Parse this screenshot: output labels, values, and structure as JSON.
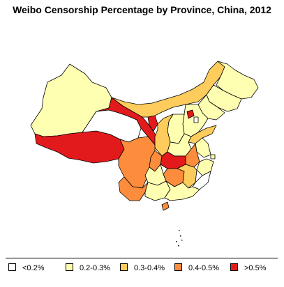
{
  "title": "Weibo Censorship Percentage by Province, China, 2012",
  "legend": {
    "items": [
      {
        "label": "<0.2%",
        "color": "#ffffff"
      },
      {
        "label": "0.2-0.3%",
        "color": "#ffffb2"
      },
      {
        "label": "0.3-0.4%",
        "color": "#fecc5c"
      },
      {
        "label": "0.4-0.5%",
        "color": "#fd8d3c"
      },
      {
        "label": ">0.5%",
        "color": "#e31a1c"
      }
    ]
  },
  "provinces": [
    {
      "name": "Xinjiang",
      "class": 1
    },
    {
      "name": "Tibet",
      "class": 4
    },
    {
      "name": "Qinghai",
      "class": 0
    },
    {
      "name": "Gansu",
      "class": 4
    },
    {
      "name": "Ningxia",
      "class": 4
    },
    {
      "name": "Inner Mongolia",
      "class": 2
    },
    {
      "name": "Heilongjiang",
      "class": 1
    },
    {
      "name": "Jilin",
      "class": 1
    },
    {
      "name": "Liaoning",
      "class": 1
    },
    {
      "name": "Hebei",
      "class": 1
    },
    {
      "name": "Beijing",
      "class": 4
    },
    {
      "name": "Tianjin",
      "class": 0
    },
    {
      "name": "Shanxi",
      "class": 1
    },
    {
      "name": "Shaanxi",
      "class": 2
    },
    {
      "name": "Shandong",
      "class": 2
    },
    {
      "name": "Henan",
      "class": 1
    },
    {
      "name": "Jiangsu",
      "class": 1
    },
    {
      "name": "Anhui",
      "class": 3
    },
    {
      "name": "Shanghai",
      "class": 1
    },
    {
      "name": "Hubei",
      "class": 4
    },
    {
      "name": "Sichuan",
      "class": 3
    },
    {
      "name": "Chongqing",
      "class": 3
    },
    {
      "name": "Zhejiang",
      "class": 1
    },
    {
      "name": "Hunan",
      "class": 3
    },
    {
      "name": "Jiangxi",
      "class": 2
    },
    {
      "name": "Guizhou",
      "class": 1
    },
    {
      "name": "Yunnan",
      "class": 3
    },
    {
      "name": "Fujian",
      "class": 0
    },
    {
      "name": "Guangxi",
      "class": 1
    },
    {
      "name": "Guangdong",
      "class": 1
    },
    {
      "name": "Hainan",
      "class": 3
    }
  ]
}
